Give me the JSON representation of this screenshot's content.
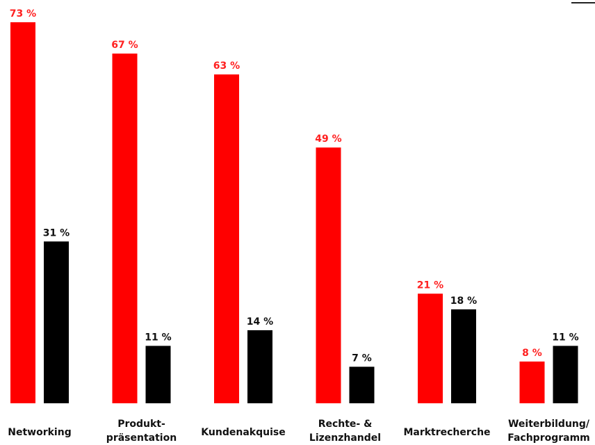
{
  "chart_data": {
    "type": "bar",
    "categories": [
      [
        "Networking"
      ],
      [
        "Produkt-",
        "präsentation"
      ],
      [
        "Kundenakquise"
      ],
      [
        "Rechte- &",
        "Lizenzhandel"
      ],
      [
        "Marktrecherche"
      ],
      [
        "Weiterbildung/",
        "Fachprogramm"
      ]
    ],
    "series": [
      {
        "color": "#ff0000",
        "values": [
          73,
          67,
          63,
          49,
          21,
          8
        ],
        "labels": [
          "73 %",
          "67 %",
          "63 %",
          "49 %",
          "21 %",
          "8 %"
        ]
      },
      {
        "color": "#000000",
        "values": [
          31,
          11,
          14,
          7,
          18,
          11
        ],
        "labels": [
          "31 %",
          "11 %",
          "14 %",
          "7 %",
          "18 %",
          "11 %"
        ]
      }
    ],
    "ylim": [
      0,
      73
    ],
    "grid": false,
    "legend": "none"
  }
}
